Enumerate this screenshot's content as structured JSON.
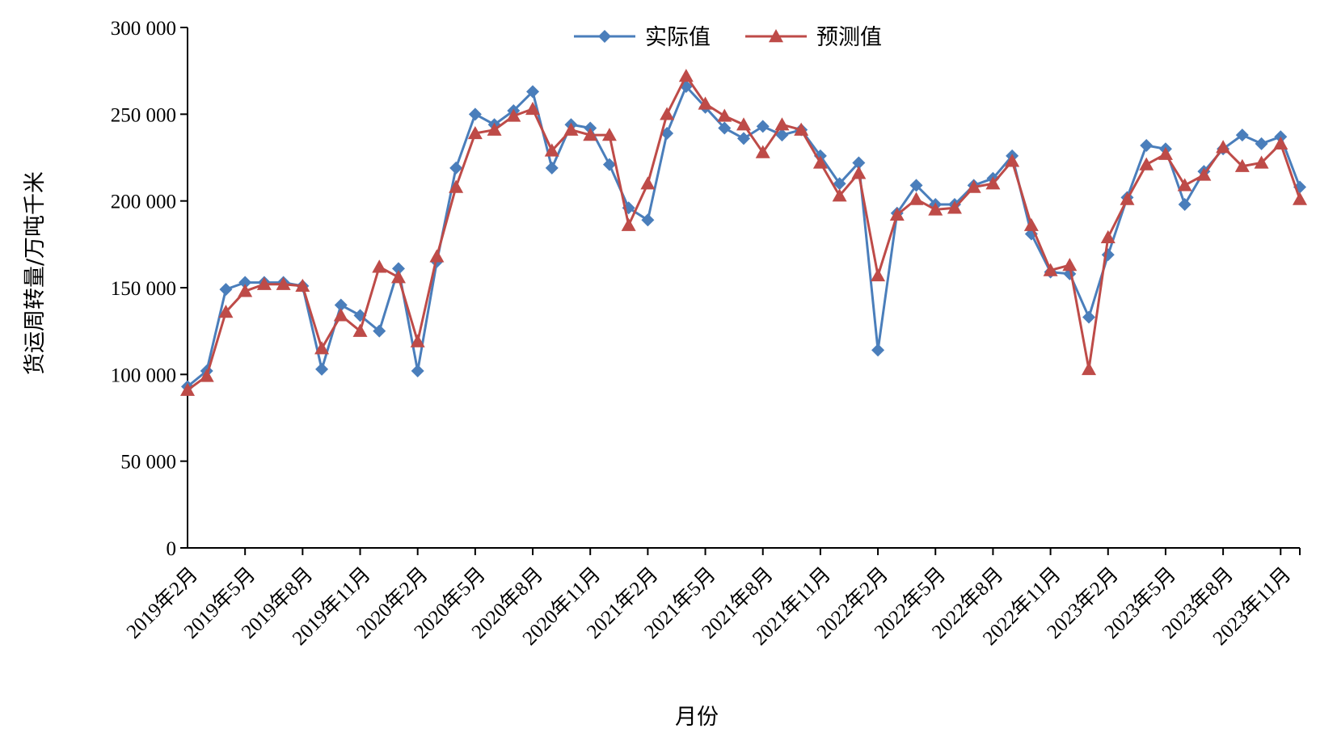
{
  "chart_data": {
    "type": "line",
    "title": "",
    "xlabel": "月份",
    "ylabel": "货运周转量/万吨千米",
    "ylim": [
      0,
      300000
    ],
    "yticks": [
      0,
      50000,
      100000,
      150000,
      200000,
      250000,
      300000
    ],
    "ytick_labels": [
      "0",
      "50 000",
      "100 000",
      "150 000",
      "200 000",
      "250 000",
      "300 000"
    ],
    "grid": false,
    "legend_position": "top-center",
    "categories": [
      "2019年2月",
      "2019年3月",
      "2019年4月",
      "2019年5月",
      "2019年6月",
      "2019年7月",
      "2019年8月",
      "2019年9月",
      "2019年10月",
      "2019年11月",
      "2019年12月",
      "2020年1月",
      "2020年2月",
      "2020年3月",
      "2020年4月",
      "2020年5月",
      "2020年6月",
      "2020年7月",
      "2020年8月",
      "2020年9月",
      "2020年10月",
      "2020年11月",
      "2020年12月",
      "2021年1月",
      "2021年2月",
      "2021年3月",
      "2021年4月",
      "2021年5月",
      "2021年6月",
      "2021年7月",
      "2021年8月",
      "2021年9月",
      "2021年10月",
      "2021年11月",
      "2021年12月",
      "2022年1月",
      "2022年2月",
      "2022年3月",
      "2022年4月",
      "2022年5月",
      "2022年6月",
      "2022年7月",
      "2022年8月",
      "2022年9月",
      "2022年10月",
      "2022年11月",
      "2022年12月",
      "2023年1月",
      "2023年2月",
      "2023年3月",
      "2023年4月",
      "2023年5月",
      "2023年6月",
      "2023年7月",
      "2023年8月",
      "2023年9月",
      "2023年10月",
      "2023年11月",
      "2023年12月"
    ],
    "tick_labels": [
      "2019年2月",
      "2019年5月",
      "2019年8月",
      "2019年11月",
      "2020年2月",
      "2020年5月",
      "2020年8月",
      "2020年11月",
      "2021年2月",
      "2021年5月",
      "2021年8月",
      "2021年11月",
      "2022年2月",
      "2022年5月",
      "2022年8月",
      "2022年11月",
      "2023年2月",
      "2023年5月",
      "2023年8月",
      "2023年11月"
    ],
    "series": [
      {
        "name": "实际值",
        "color": "#4a7ebb",
        "marker": "diamond",
        "values": [
          93000,
          102000,
          149000,
          153000,
          153000,
          153000,
          151000,
          103000,
          140000,
          134000,
          125000,
          161000,
          102000,
          165000,
          219000,
          250000,
          244000,
          252000,
          263000,
          219000,
          244000,
          242000,
          221000,
          196000,
          189000,
          239000,
          266000,
          254000,
          242000,
          236000,
          243000,
          238000,
          241000,
          226000,
          210000,
          222000,
          114000,
          193000,
          209000,
          198000,
          198000,
          209000,
          213000,
          226000,
          181000,
          159000,
          158000,
          133000,
          169000,
          202000,
          232000,
          230000,
          198000,
          217000,
          230000,
          238000,
          233000,
          237000,
          208000
        ]
      },
      {
        "name": "预测值",
        "color": "#be4b48",
        "marker": "triangle",
        "values": [
          91000,
          99000,
          136000,
          148000,
          152000,
          152000,
          151000,
          115000,
          134000,
          125000,
          162000,
          156000,
          119000,
          168000,
          208000,
          239000,
          241000,
          249000,
          253000,
          229000,
          241000,
          238000,
          238000,
          186000,
          210000,
          250000,
          272000,
          256000,
          249000,
          244000,
          228000,
          244000,
          241000,
          222000,
          203000,
          216000,
          157000,
          192000,
          201000,
          195000,
          196000,
          208000,
          210000,
          223000,
          186000,
          160000,
          163000,
          103000,
          179000,
          201000,
          221000,
          227000,
          209000,
          215000,
          231000,
          220000,
          222000,
          233000,
          201000
        ]
      }
    ]
  }
}
